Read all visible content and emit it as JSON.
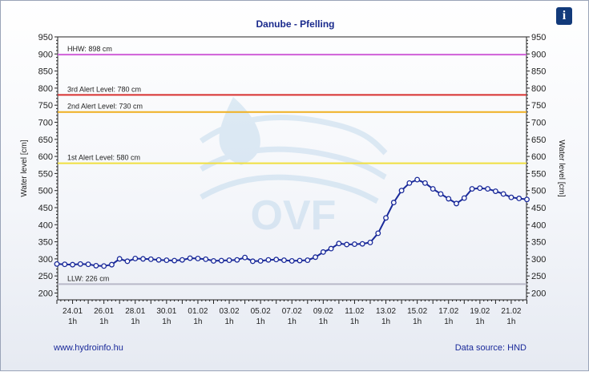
{
  "chart_data": {
    "type": "line",
    "title": "Danube - Pfelling",
    "ylabel": "Water level [cm]",
    "ylabel_right": "Water level [cm]",
    "ylim": [
      180,
      950
    ],
    "yticks": [
      200,
      250,
      300,
      350,
      400,
      450,
      500,
      550,
      600,
      650,
      700,
      750,
      800,
      850,
      900,
      950
    ],
    "xlim": [
      0,
      30
    ],
    "xticks": [
      {
        "x": 1,
        "date": "24.01",
        "hour": "1h"
      },
      {
        "x": 3,
        "date": "26.01",
        "hour": "1h"
      },
      {
        "x": 5,
        "date": "28.01",
        "hour": "1h"
      },
      {
        "x": 7,
        "date": "30.01",
        "hour": "1h"
      },
      {
        "x": 9,
        "date": "01.02",
        "hour": "1h"
      },
      {
        "x": 11,
        "date": "03.02",
        "hour": "1h"
      },
      {
        "x": 13,
        "date": "05.02",
        "hour": "1h"
      },
      {
        "x": 15,
        "date": "07.02",
        "hour": "1h"
      },
      {
        "x": 17,
        "date": "09.02",
        "hour": "1h"
      },
      {
        "x": 19,
        "date": "11.02",
        "hour": "1h"
      },
      {
        "x": 21,
        "date": "13.02",
        "hour": "1h"
      },
      {
        "x": 23,
        "date": "15.02",
        "hour": "1h"
      },
      {
        "x": 25,
        "date": "17.02",
        "hour": "1h"
      },
      {
        "x": 27,
        "date": "19.02",
        "hour": "1h"
      },
      {
        "x": 29,
        "date": "21.02",
        "hour": "1h"
      }
    ],
    "reference_lines": [
      {
        "label": "HHW: 898 cm",
        "value": 898,
        "color": "#d060d8"
      },
      {
        "label": "3rd Alert Level: 780 cm",
        "value": 780,
        "color": "#d83030"
      },
      {
        "label": "2nd Alert Level: 730 cm",
        "value": 730,
        "color": "#f0b020"
      },
      {
        "label": "1st Alert Level: 580 cm",
        "value": 580,
        "color": "#f0e040"
      },
      {
        "label": "LLW: 226 cm",
        "value": 226,
        "color": "#b8b8c8"
      }
    ],
    "series": [
      {
        "color": "#1a2a9a",
        "points": [
          [
            0,
            285
          ],
          [
            0.5,
            284
          ],
          [
            1,
            283
          ],
          [
            1.5,
            285
          ],
          [
            2,
            284
          ],
          [
            2.5,
            280
          ],
          [
            3,
            279
          ],
          [
            3.5,
            283
          ],
          [
            4,
            300
          ],
          [
            4.5,
            293
          ],
          [
            5,
            301
          ],
          [
            5.5,
            300
          ],
          [
            6,
            299
          ],
          [
            6.5,
            297
          ],
          [
            7,
            296
          ],
          [
            7.5,
            295
          ],
          [
            8,
            297
          ],
          [
            8.5,
            302
          ],
          [
            9,
            301
          ],
          [
            9.5,
            299
          ],
          [
            10,
            294
          ],
          [
            10.5,
            295
          ],
          [
            11,
            296
          ],
          [
            11.5,
            297
          ],
          [
            12,
            304
          ],
          [
            12.5,
            293
          ],
          [
            13,
            294
          ],
          [
            13.5,
            297
          ],
          [
            14,
            298
          ],
          [
            14.5,
            296
          ],
          [
            15,
            294
          ],
          [
            15.5,
            295
          ],
          [
            16,
            296
          ],
          [
            16.5,
            305
          ],
          [
            17,
            320
          ],
          [
            17.5,
            330
          ],
          [
            18,
            345
          ],
          [
            18.5,
            342
          ],
          [
            19,
            343
          ],
          [
            19.5,
            344
          ],
          [
            20,
            348
          ],
          [
            20.5,
            375
          ],
          [
            21,
            420
          ],
          [
            21.5,
            465
          ],
          [
            22,
            500
          ],
          [
            22.5,
            522
          ],
          [
            23,
            532
          ],
          [
            23.5,
            522
          ],
          [
            24,
            505
          ],
          [
            24.5,
            490
          ],
          [
            25,
            476
          ],
          [
            25.5,
            462
          ],
          [
            26,
            478
          ],
          [
            26.5,
            505
          ],
          [
            27,
            507
          ],
          [
            27.5,
            505
          ],
          [
            28,
            498
          ],
          [
            28.5,
            490
          ],
          [
            29,
            480
          ],
          [
            29.5,
            477
          ],
          [
            30,
            474
          ]
        ]
      }
    ]
  },
  "watermark": "OVF",
  "info_icon": "info-icon",
  "footer": {
    "website": "www.hydroinfo.hu",
    "source": "Data source: HND"
  }
}
